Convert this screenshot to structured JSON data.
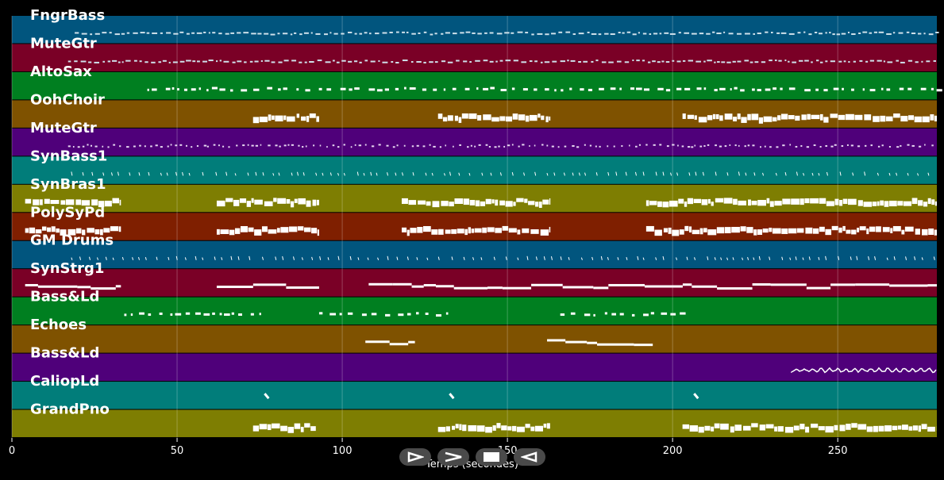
{
  "chart_data": {
    "type": "piano-roll",
    "xlabel": "Temps (secondes)",
    "xlim": [
      0,
      280
    ],
    "xticks": [
      0,
      50,
      100,
      150,
      200,
      250
    ],
    "grid": true,
    "tracks": [
      {
        "name": "FngrBass",
        "color": "#01557e",
        "segments": [
          [
            19,
            280
          ]
        ],
        "style": "dashes"
      },
      {
        "name": "MuteGtr",
        "color": "#7a0026",
        "segments": [
          [
            17,
            280
          ]
        ],
        "style": "dashes"
      },
      {
        "name": "AltoSax",
        "color": "#007f20",
        "segments": [
          [
            41,
            280
          ]
        ],
        "style": "sparse"
      },
      {
        "name": "OohChoir",
        "color": "#7f5200",
        "segments": [
          [
            73,
            93
          ],
          [
            129,
            163
          ],
          [
            203,
            280
          ]
        ],
        "style": "blocks"
      },
      {
        "name": "MuteGtr",
        "color": "#4f007a",
        "segments": [
          [
            17,
            280
          ]
        ],
        "style": "dots"
      },
      {
        "name": "SynBass1",
        "color": "#017d7a",
        "segments": [
          [
            18,
            280
          ]
        ],
        "style": "ticks"
      },
      {
        "name": "SynBras1",
        "color": "#7e7e02",
        "segments": [
          [
            4,
            33
          ],
          [
            62,
            93
          ],
          [
            118,
            163
          ],
          [
            192,
            280
          ]
        ],
        "style": "blocks"
      },
      {
        "name": "PolySyPd",
        "color": "#7f1f00",
        "segments": [
          [
            4,
            33
          ],
          [
            62,
            93
          ],
          [
            118,
            163
          ],
          [
            192,
            280
          ]
        ],
        "style": "blocks"
      },
      {
        "name": "GM Drums",
        "color": "#01557e",
        "segments": [
          [
            18,
            280
          ]
        ],
        "style": "ticks"
      },
      {
        "name": "SynStrg1",
        "color": "#7a0026",
        "segments": [
          [
            4,
            33
          ],
          [
            62,
            93
          ],
          [
            108,
            280
          ]
        ],
        "style": "lines"
      },
      {
        "name": "Bass&Ld",
        "color": "#007f20",
        "segments": [
          [
            34,
            76
          ],
          [
            93,
            133
          ],
          [
            166,
            206
          ]
        ],
        "style": "sparse"
      },
      {
        "name": "Echoes",
        "color": "#7f5200",
        "segments": [
          [
            107,
            122
          ],
          [
            162,
            194
          ]
        ],
        "style": "lines"
      },
      {
        "name": "Bass&Ld",
        "color": "#4f007a",
        "segments": [
          [
            236,
            280
          ]
        ],
        "style": "wave"
      },
      {
        "name": "CaliopLd",
        "color": "#017d7a",
        "segments": [
          [
            77,
            78
          ],
          [
            133,
            134
          ],
          [
            207,
            208
          ]
        ],
        "style": "marks"
      },
      {
        "name": "GrandPno",
        "color": "#7e7e02",
        "segments": [
          [
            73,
            92
          ],
          [
            129,
            163
          ],
          [
            203,
            280
          ]
        ],
        "style": "blocks"
      }
    ]
  },
  "controls": {
    "play_icon": "play-icon",
    "forward_icon": "forward-icon",
    "stop_icon": "stop-icon",
    "rewind_icon": "rewind-icon"
  }
}
